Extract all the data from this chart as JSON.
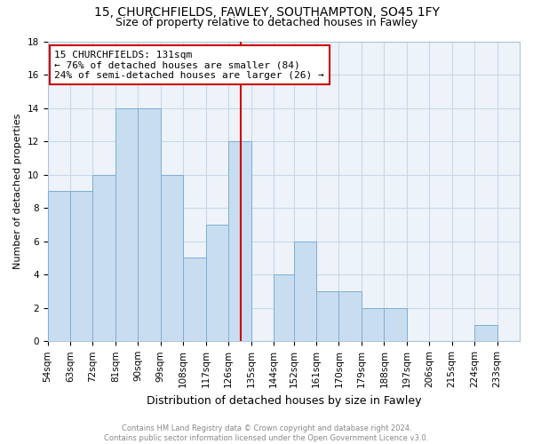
{
  "title": "15, CHURCHFIELDS, FAWLEY, SOUTHAMPTON, SO45 1FY",
  "subtitle": "Size of property relative to detached houses in Fawley",
  "xlabel": "Distribution of detached houses by size in Fawley",
  "ylabel": "Number of detached properties",
  "bar_labels": [
    "54sqm",
    "63sqm",
    "72sqm",
    "81sqm",
    "90sqm",
    "99sqm",
    "108sqm",
    "117sqm",
    "126sqm",
    "135sqm",
    "144sqm",
    "152sqm",
    "161sqm",
    "170sqm",
    "179sqm",
    "188sqm",
    "197sqm",
    "206sqm",
    "215sqm",
    "224sqm",
    "233sqm"
  ],
  "bar_values": [
    9,
    9,
    10,
    14,
    14,
    10,
    5,
    7,
    12,
    0,
    4,
    6,
    3,
    3,
    2,
    2,
    0,
    0,
    0,
    1,
    0
  ],
  "bar_color": "#c9ddf0",
  "bar_edgecolor": "#7bafd4",
  "bin_edges": [
    54,
    63,
    72,
    81,
    90,
    99,
    108,
    117,
    126,
    135,
    144,
    152,
    161,
    170,
    179,
    188,
    197,
    206,
    215,
    224,
    233
  ],
  "bin_width": 9,
  "ylim": [
    0,
    18
  ],
  "yticks": [
    0,
    2,
    4,
    6,
    8,
    10,
    12,
    14,
    16,
    18
  ],
  "annotation_title": "15 CHURCHFIELDS: 131sqm",
  "annotation_line1": "← 76% of detached houses are smaller (84)",
  "annotation_line2": "24% of semi-detached houses are larger (26) →",
  "annotation_box_color": "#cc0000",
  "vline_x": 131,
  "vline_color": "#cc0000",
  "grid_color": "#c8d8e8",
  "background_color": "#eef3fa",
  "footer": "Contains HM Land Registry data © Crown copyright and database right 2024.\nContains public sector information licensed under the Open Government Licence v3.0.",
  "title_fontsize": 10,
  "subtitle_fontsize": 9,
  "xlabel_fontsize": 9,
  "ylabel_fontsize": 8,
  "tick_fontsize": 7.5,
  "annotation_fontsize": 8,
  "footer_fontsize": 6
}
